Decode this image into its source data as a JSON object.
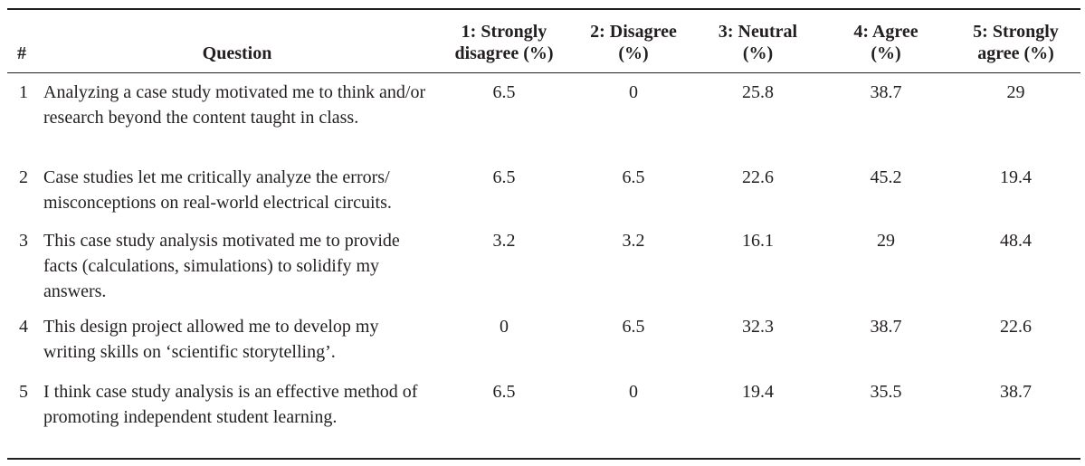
{
  "table": {
    "headers": {
      "num": "#",
      "question": "Question",
      "col1_line1": "1: Strongly",
      "col1_line2": "disagree (%)",
      "col2_line1": "2: Disagree",
      "col2_line2": "(%)",
      "col3_line1": "3: Neutral",
      "col3_line2": "(%)",
      "col4_line1": "4: Agree",
      "col4_line2": "(%)",
      "col5_line1": "5: Strongly",
      "col5_line2": "agree (%)"
    },
    "rows": [
      {
        "num": "1",
        "question": "Analyzing a case study motivated me to think and/or research beyond the content taught in class.",
        "strongly_disagree": "6.5",
        "disagree": "0",
        "neutral": "25.8",
        "agree": "38.7",
        "strongly_agree": "29"
      },
      {
        "num": "2",
        "question": "Case studies let me critically analyze the errors/ misconceptions on real-world electrical circuits.",
        "strongly_disagree": "6.5",
        "disagree": "6.5",
        "neutral": "22.6",
        "agree": "45.2",
        "strongly_agree": "19.4"
      },
      {
        "num": "3",
        "question": "This case study analysis motivated me to provide facts (calculations, simulations) to solidify my answers.",
        "strongly_disagree": "3.2",
        "disagree": "3.2",
        "neutral": "16.1",
        "agree": "29",
        "strongly_agree": "48.4"
      },
      {
        "num": "4",
        "question": "This design project allowed me to develop my writing skills on ‘scientific storytelling’.",
        "strongly_disagree": "0",
        "disagree": "6.5",
        "neutral": "32.3",
        "agree": "38.7",
        "strongly_agree": "22.6"
      },
      {
        "num": "5",
        "question": "I think case study analysis is an effective method of promoting independent student learning.",
        "strongly_disagree": "6.5",
        "disagree": "0",
        "neutral": "19.4",
        "agree": "35.5",
        "strongly_agree": "38.7"
      }
    ]
  }
}
